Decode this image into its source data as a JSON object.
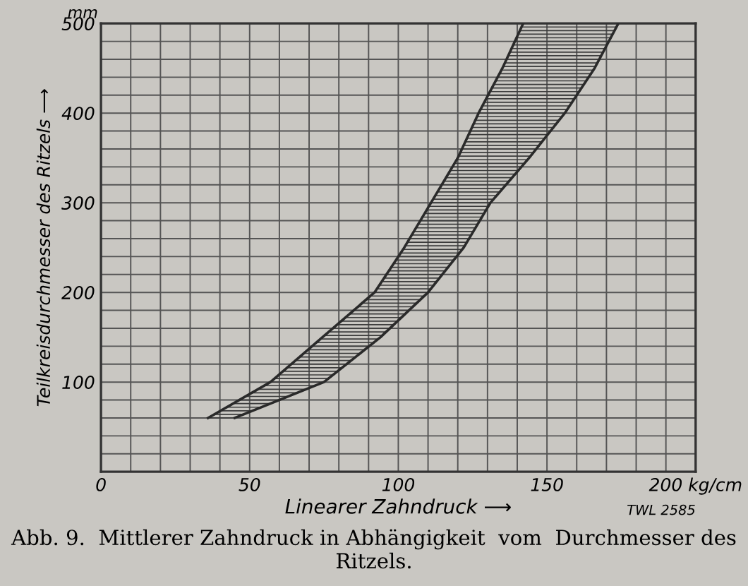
{
  "chart_data": {
    "type": "line",
    "xlabel": "Linearer Zahndruck ⟶",
    "ylabel": "Teilkreisdurchmesser des Ritzels ⟶",
    "series": [
      {
        "color": "#2a2a2a",
        "x": [
          36,
          57,
          74.5,
          92,
          102,
          111,
          120,
          127,
          135,
          142
        ],
        "values": [
          60,
          100,
          150,
          200,
          250,
          300,
          350,
          400,
          450,
          500
        ]
      },
      {
        "color": "#2a2a2a",
        "x": [
          45,
          75,
          94,
          110,
          122,
          131,
          144,
          156,
          166,
          174
        ],
        "values": [
          60,
          100,
          150,
          200,
          250,
          300,
          350,
          400,
          450,
          500
        ]
      }
    ],
    "xlim": [
      0,
      200
    ],
    "ylim": [
      0,
      500
    ],
    "xticks": [
      0,
      {
        "value": 10,
        "label": null
      },
      {
        "value": 20,
        "label": null
      },
      {
        "value": 30,
        "label": null
      },
      {
        "value": 40,
        "label": null
      },
      50,
      {
        "value": 60,
        "label": null
      },
      {
        "value": 70,
        "label": null
      },
      {
        "value": 80,
        "label": null
      },
      {
        "value": 90,
        "label": null
      },
      100,
      {
        "value": 110,
        "label": null
      },
      {
        "value": 120,
        "label": null
      },
      {
        "value": 130,
        "label": null
      },
      {
        "value": 140,
        "label": null
      },
      150,
      {
        "value": 160,
        "label": null
      },
      {
        "value": 170,
        "label": null
      },
      {
        "value": 180,
        "label": null
      },
      {
        "value": 190,
        "label": null
      },
      {
        "value": 200,
        "label": "200 kg/cm"
      }
    ],
    "yticks": [
      {
        "value": 0,
        "label": null
      },
      {
        "value": 20,
        "label": null
      },
      {
        "value": 40,
        "label": null
      },
      {
        "value": 60,
        "label": null
      },
      {
        "value": 80,
        "label": null
      },
      100,
      {
        "value": 120,
        "label": null
      },
      {
        "value": 140,
        "label": null
      },
      {
        "value": 160,
        "label": null
      },
      {
        "value": 180,
        "label": null
      },
      200,
      {
        "value": 220,
        "label": null
      },
      {
        "value": 240,
        "label": null
      },
      {
        "value": 260,
        "label": null
      },
      {
        "value": 280,
        "label": null
      },
      300,
      {
        "value": 320,
        "label": null
      },
      {
        "value": 340,
        "label": null
      },
      {
        "value": 360,
        "label": null
      },
      {
        "value": 380,
        "label": null
      },
      400,
      {
        "value": 420,
        "label": null
      },
      {
        "value": 440,
        "label": null
      },
      {
        "value": 460,
        "label": null
      },
      {
        "value": 480,
        "label": null
      },
      500
    ],
    "grid": true,
    "marker": "none",
    "line_style": "solid",
    "annotations": [
      "mm",
      "TWL 2585",
      "Abb. 9.  Mittlerer Zahndruck in Abhängigkeit  vom  Durchmesser des Ritzels."
    ]
  }
}
